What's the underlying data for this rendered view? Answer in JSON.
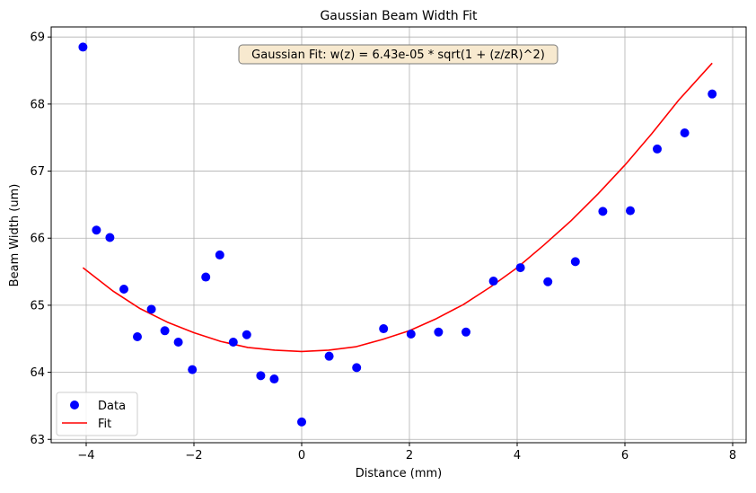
{
  "chart_data": {
    "type": "scatter",
    "title": "Gaussian Beam Width Fit",
    "xlabel": "Distance (mm)",
    "ylabel": "Beam Width (um)",
    "xlim": [
      -4.65,
      8.25
    ],
    "ylim": [
      62.95,
      69.15
    ],
    "xticks": [
      -4,
      -2,
      0,
      2,
      4,
      6,
      8
    ],
    "yticks": [
      63,
      64,
      65,
      66,
      67,
      68,
      69
    ],
    "grid": true,
    "legend_position": "lower-left",
    "annotation": "Gaussian Fit: w(z) = 6.43e-05 * sqrt(1 + (z/zR)^2)",
    "series": [
      {
        "name": "Data",
        "kind": "scatter",
        "color": "#0000ff",
        "points": [
          [
            -4.06,
            68.85
          ],
          [
            -3.81,
            66.12
          ],
          [
            -3.56,
            66.01
          ],
          [
            -3.3,
            65.24
          ],
          [
            -3.05,
            64.53
          ],
          [
            -2.79,
            64.94
          ],
          [
            -2.54,
            64.62
          ],
          [
            -2.29,
            64.45
          ],
          [
            -2.03,
            64.04
          ],
          [
            -1.78,
            65.42
          ],
          [
            -1.52,
            65.75
          ],
          [
            -1.27,
            64.45
          ],
          [
            -1.02,
            64.56
          ],
          [
            -0.76,
            63.95
          ],
          [
            -0.51,
            63.9
          ],
          [
            0.0,
            63.26
          ],
          [
            0.51,
            64.24
          ],
          [
            1.02,
            64.07
          ],
          [
            1.52,
            64.65
          ],
          [
            2.03,
            64.57
          ],
          [
            2.54,
            64.6
          ],
          [
            3.05,
            64.6
          ],
          [
            3.56,
            65.36
          ],
          [
            4.06,
            65.56
          ],
          [
            4.57,
            65.35
          ],
          [
            5.08,
            65.65
          ],
          [
            5.59,
            66.4
          ],
          [
            6.1,
            66.41
          ],
          [
            6.6,
            67.33
          ],
          [
            7.11,
            67.57
          ],
          [
            7.62,
            68.15
          ]
        ]
      },
      {
        "name": "Fit",
        "kind": "line",
        "color": "#ff0000",
        "points": [
          [
            -4.06,
            65.56
          ],
          [
            -3.5,
            65.21
          ],
          [
            -3.0,
            64.95
          ],
          [
            -2.5,
            64.75
          ],
          [
            -2.0,
            64.59
          ],
          [
            -1.5,
            64.46
          ],
          [
            -1.0,
            64.37
          ],
          [
            -0.5,
            64.33
          ],
          [
            0.0,
            64.31
          ],
          [
            0.5,
            64.33
          ],
          [
            1.0,
            64.38
          ],
          [
            1.5,
            64.49
          ],
          [
            2.0,
            64.62
          ],
          [
            2.5,
            64.8
          ],
          [
            3.0,
            65.01
          ],
          [
            3.5,
            65.27
          ],
          [
            4.0,
            65.56
          ],
          [
            4.5,
            65.9
          ],
          [
            5.0,
            66.26
          ],
          [
            5.5,
            66.66
          ],
          [
            6.0,
            67.09
          ],
          [
            6.5,
            67.56
          ],
          [
            7.0,
            68.06
          ],
          [
            7.62,
            68.61
          ]
        ]
      }
    ]
  }
}
